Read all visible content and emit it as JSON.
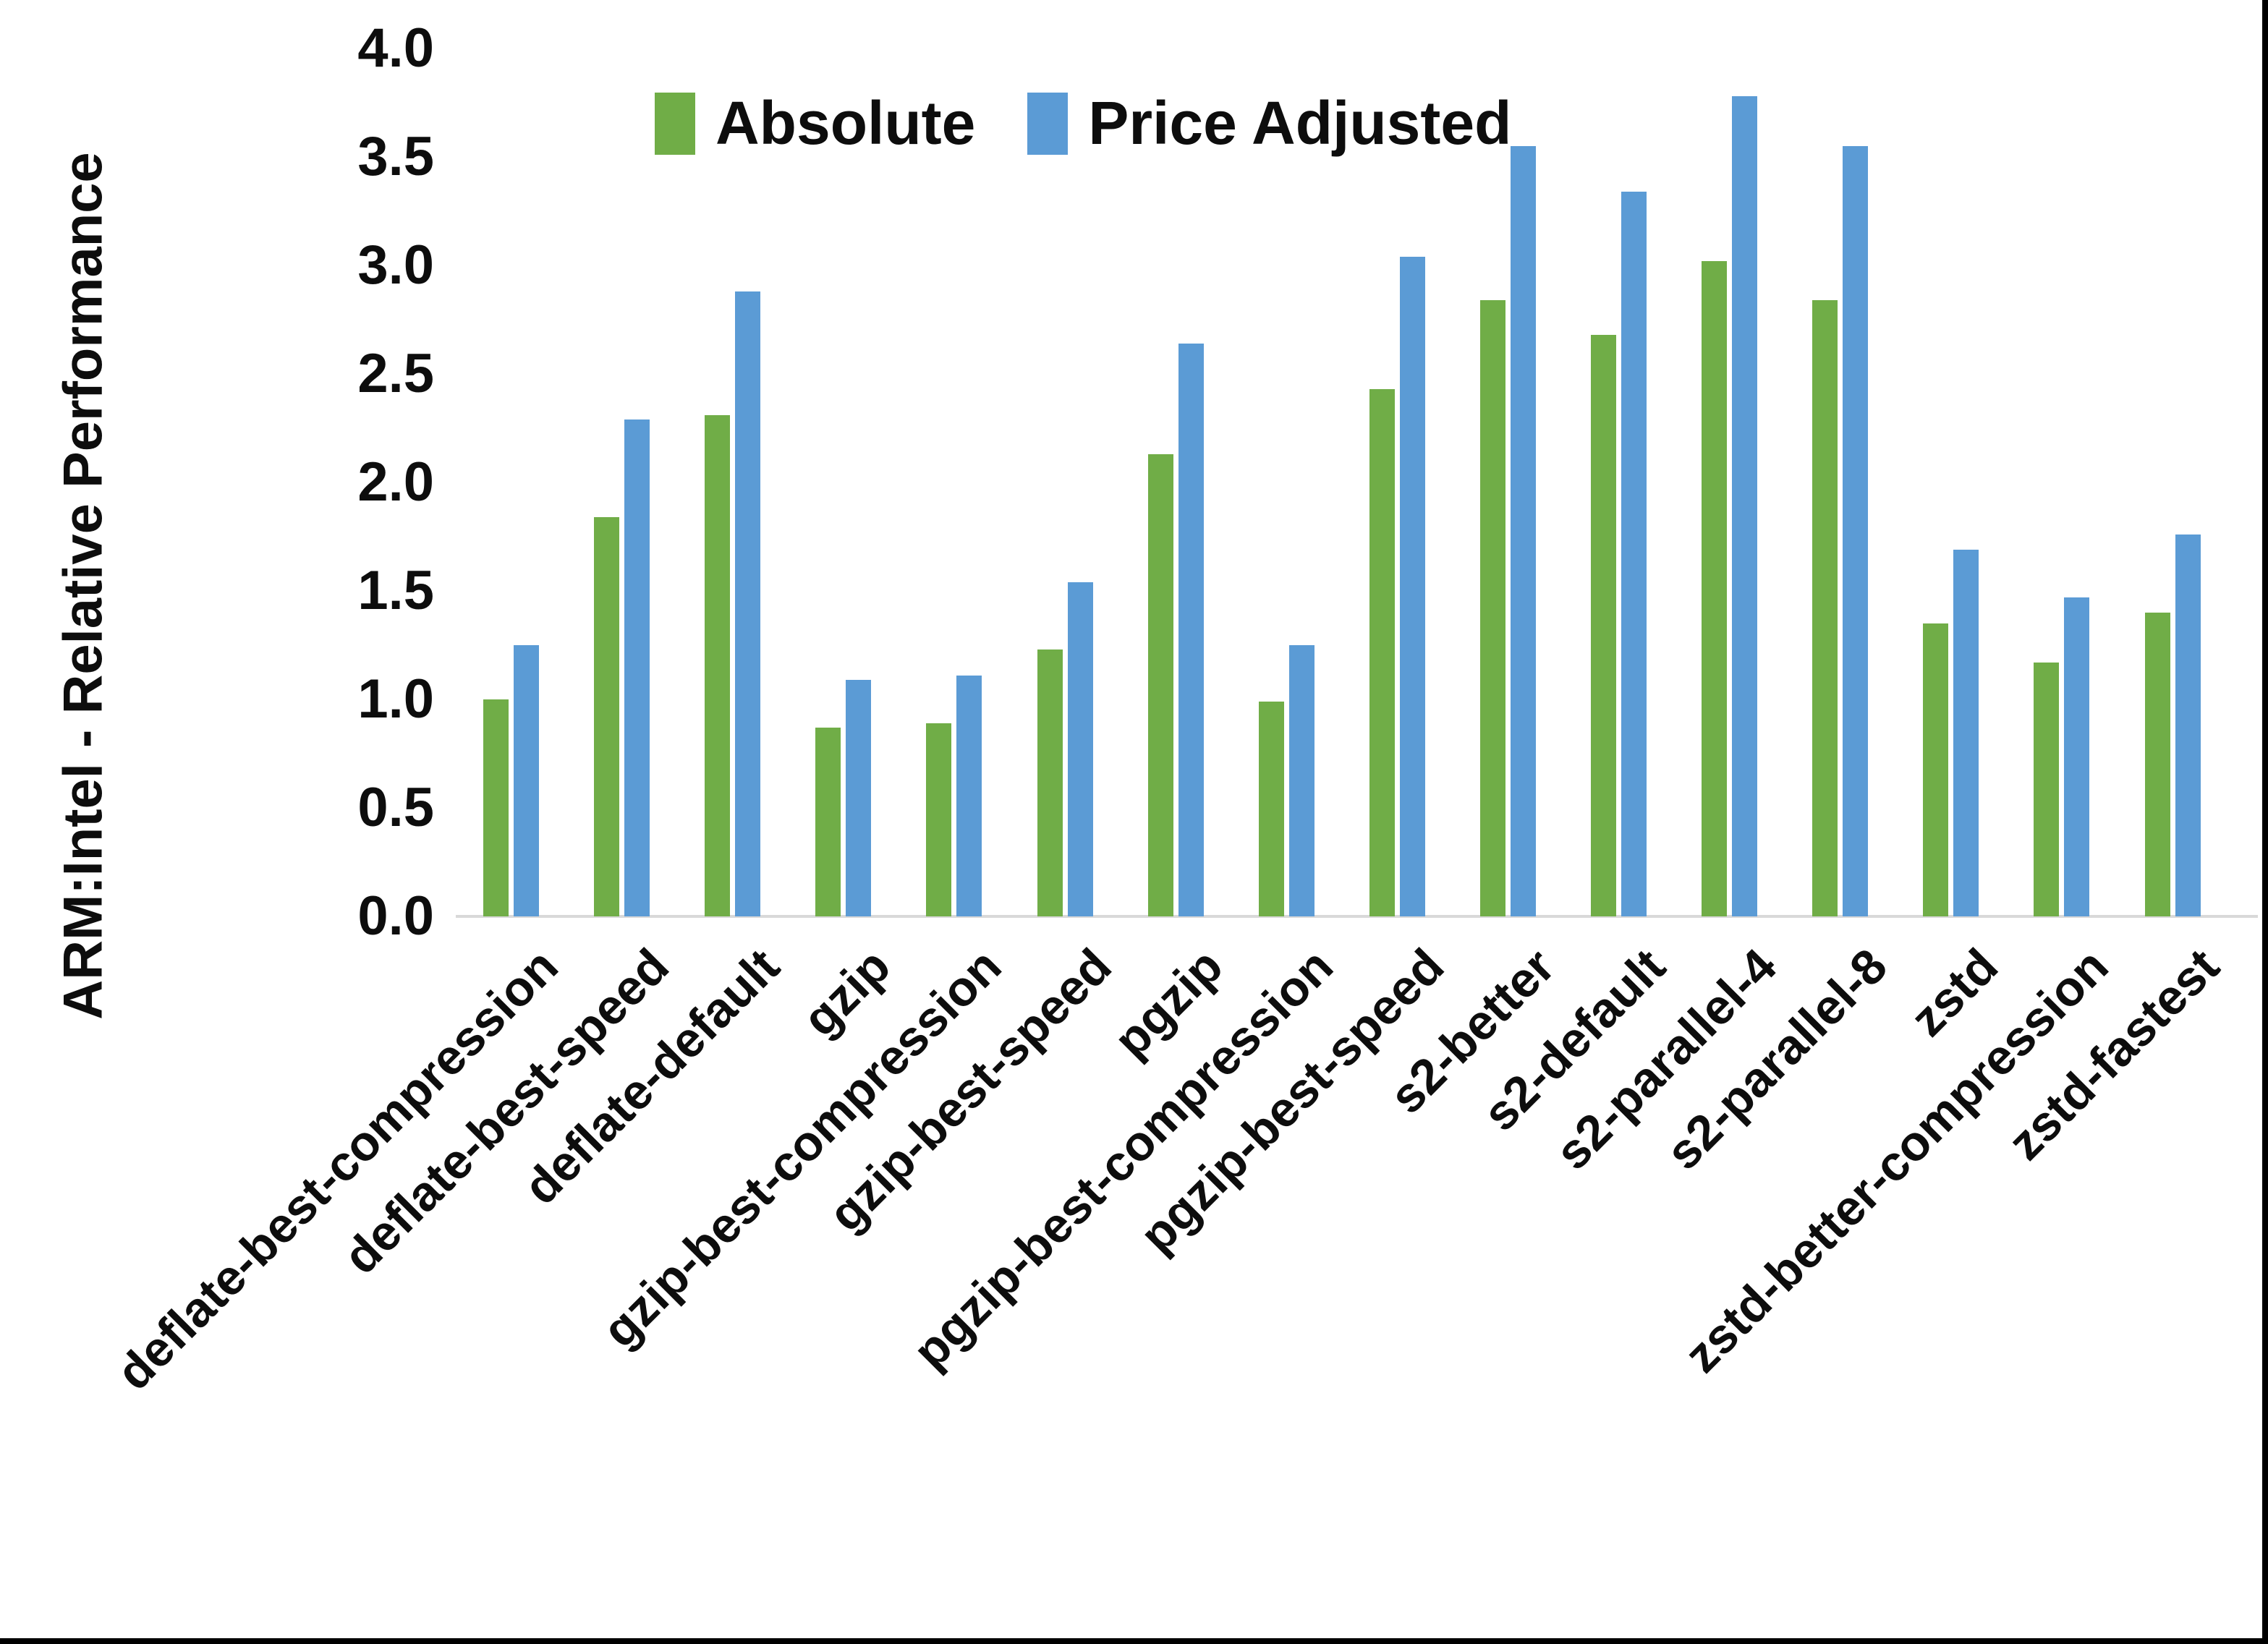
{
  "figure": {
    "background": "#ffffff",
    "frame_border_color": "#000000",
    "axis_line_color": "#d9d9d9",
    "text_color": "#0d0d0d"
  },
  "chart_data": {
    "type": "bar",
    "title": "",
    "xlabel": "",
    "ylabel": "ARM:Intel - Relative Performance",
    "ylim": [
      0,
      4.0
    ],
    "ytick_step": 0.5,
    "ytick_labels": [
      "0.0",
      "0.5",
      "1.0",
      "1.5",
      "2.0",
      "2.5",
      "3.0",
      "3.5",
      "4.0"
    ],
    "grid": false,
    "legend_position": "top-center",
    "categories": [
      "deflate-best-compression",
      "deflate-best-speed",
      "deflate-default",
      "gzip",
      "gzip-best-compression",
      "gzip-best-speed",
      "pgzip",
      "pgzip-best-compression",
      "pgzip-best-speed",
      "s2-better",
      "s2-default",
      "s2-parallel-4",
      "s2-parallel-8",
      "zstd",
      "zstd-better-compression",
      "zstd-fastest"
    ],
    "series": [
      {
        "name": "Absolute",
        "color": "#70AD47",
        "values": [
          1.0,
          1.84,
          2.31,
          0.87,
          0.89,
          1.23,
          2.13,
          0.99,
          2.43,
          2.84,
          2.68,
          3.02,
          2.84,
          1.35,
          1.17,
          1.4
        ]
      },
      {
        "name": "Price Adjusted",
        "color": "#5B9BD5",
        "values": [
          1.25,
          2.29,
          2.88,
          1.09,
          1.11,
          1.54,
          2.64,
          1.25,
          3.04,
          3.55,
          3.34,
          3.78,
          3.55,
          1.69,
          1.47,
          1.76
        ]
      }
    ]
  }
}
